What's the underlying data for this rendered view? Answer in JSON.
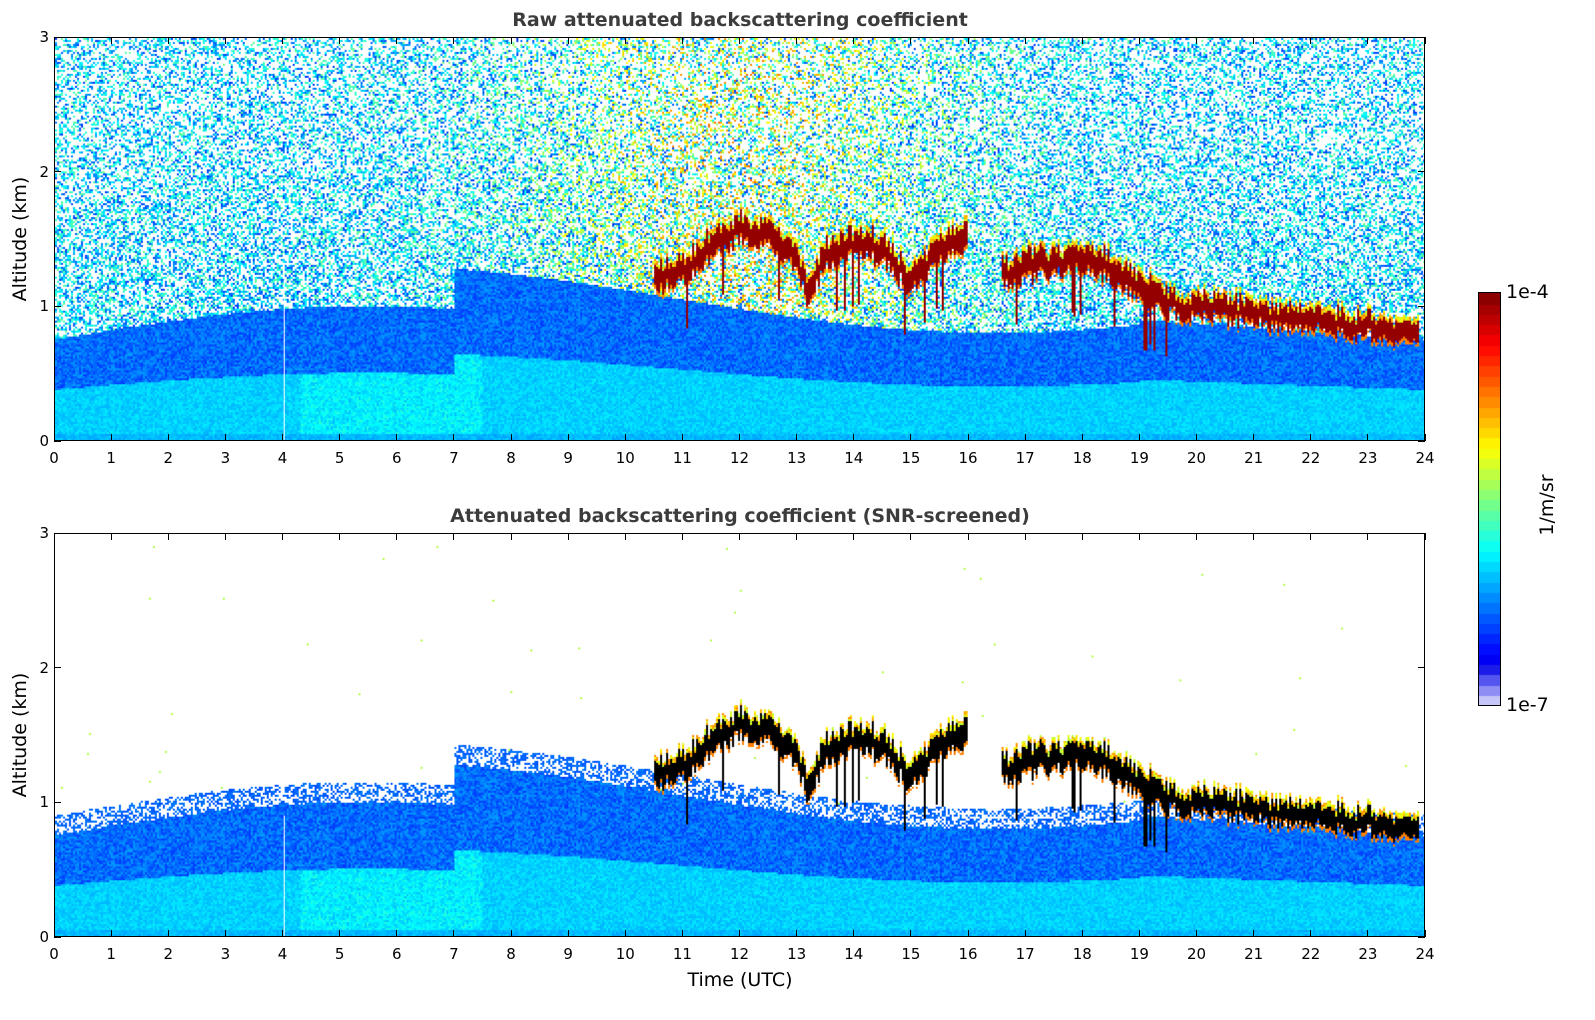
{
  "chart_data": [
    {
      "type": "heatmap",
      "title": "Raw attenuated backscattering coefficient",
      "xlabel": "",
      "ylabel": "Altitude (km)",
      "xlim": [
        0,
        24
      ],
      "ylim": [
        0,
        3
      ],
      "xticks": [
        "0",
        "1",
        "2",
        "3",
        "4",
        "5",
        "6",
        "7",
        "8",
        "9",
        "10",
        "11",
        "12",
        "13",
        "14",
        "15",
        "16",
        "17",
        "18",
        "19",
        "20",
        "21",
        "22",
        "23",
        "24"
      ],
      "yticks": [
        "0",
        "1",
        "2",
        "3"
      ],
      "screened": false
    },
    {
      "type": "heatmap",
      "title": "Attenuated backscattering coefficient (SNR-screened)",
      "xlabel": "Time (UTC)",
      "ylabel": "Altitude (km)",
      "xlim": [
        0,
        24
      ],
      "ylim": [
        0,
        3
      ],
      "xticks": [
        "0",
        "1",
        "2",
        "3",
        "4",
        "5",
        "6",
        "7",
        "8",
        "9",
        "10",
        "11",
        "12",
        "13",
        "14",
        "15",
        "16",
        "17",
        "18",
        "19",
        "20",
        "21",
        "22",
        "23",
        "24"
      ],
      "yticks": [
        "0",
        "1",
        "2",
        "3"
      ],
      "screened": true
    }
  ],
  "colorbar": {
    "max_label": "1e-4",
    "min_label": "1e-7",
    "unit": "1/m/sr",
    "scale": "log",
    "range": [
      1e-07,
      0.0001
    ],
    "colormap": "jet"
  },
  "cloud_layer_km": {
    "time_utc": [
      10.5,
      11.0,
      11.5,
      12.0,
      12.5,
      13.0,
      13.2,
      13.5,
      14.0,
      14.5,
      15.0,
      15.5,
      16.0,
      16.4,
      16.6,
      17.0,
      17.5,
      18.0,
      18.5,
      19.0,
      19.5,
      20.0,
      20.5,
      21.0,
      21.5,
      22.0,
      22.5,
      23.0,
      23.5,
      23.9
    ],
    "base_km": [
      1.1,
      1.2,
      1.35,
      1.5,
      1.45,
      1.3,
      1.0,
      1.3,
      1.38,
      1.35,
      1.1,
      1.35,
      1.45,
      null,
      1.15,
      1.2,
      1.25,
      1.28,
      1.2,
      1.05,
      0.95,
      0.93,
      0.9,
      0.88,
      0.85,
      0.82,
      0.8,
      0.78,
      0.75,
      0.72
    ]
  }
}
